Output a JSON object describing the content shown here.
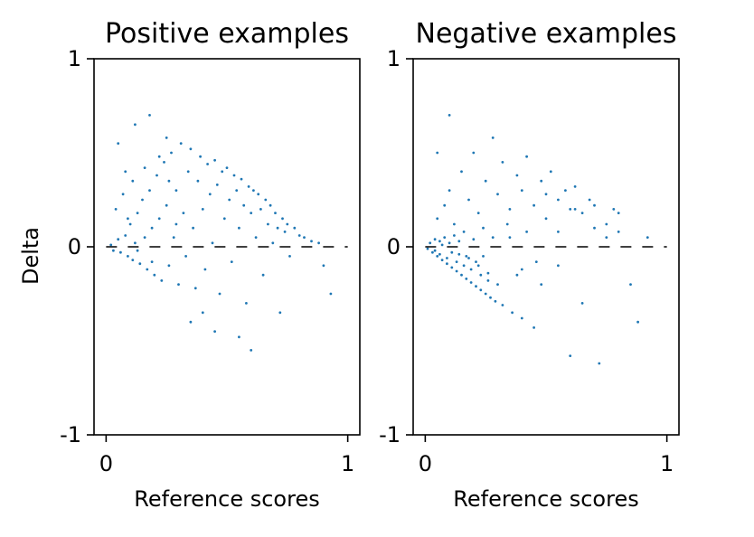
{
  "chart_data": [
    {
      "type": "scatter",
      "title": "Positive examples",
      "xlabel": "Reference scores",
      "ylabel": "Delta",
      "xlim": [
        -0.05,
        1.05
      ],
      "ylim": [
        -1,
        1
      ],
      "xticks": [
        {
          "value": 0,
          "label": "0"
        },
        {
          "value": 1,
          "label": "1"
        }
      ],
      "yticks": [
        {
          "value": -1,
          "label": "-1"
        },
        {
          "value": 0,
          "label": "0"
        },
        {
          "value": 1,
          "label": "1"
        }
      ],
      "reference_line": {
        "y": 0,
        "x_range": [
          0,
          1
        ],
        "style": "dashed",
        "color": "#000000"
      },
      "grid": false,
      "marker_color": "#1f77b4",
      "series": [
        {
          "points": [
            [
              0.02,
              0.01
            ],
            [
              0.03,
              -0.02
            ],
            [
              0.05,
              0.04
            ],
            [
              0.06,
              -0.03
            ],
            [
              0.08,
              0.06
            ],
            [
              0.09,
              -0.05
            ],
            [
              0.1,
              0.12
            ],
            [
              0.11,
              -0.07
            ],
            [
              0.12,
              0.02
            ],
            [
              0.13,
              0.18
            ],
            [
              0.14,
              -0.09
            ],
            [
              0.15,
              0.25
            ],
            [
              0.16,
              0.05
            ],
            [
              0.17,
              -0.12
            ],
            [
              0.18,
              0.3
            ],
            [
              0.19,
              0.1
            ],
            [
              0.2,
              -0.15
            ],
            [
              0.21,
              0.38
            ],
            [
              0.22,
              0.15
            ],
            [
              0.23,
              -0.18
            ],
            [
              0.24,
              0.45
            ],
            [
              0.25,
              0.22
            ],
            [
              0.26,
              -0.1
            ],
            [
              0.27,
              0.5
            ],
            [
              0.28,
              0.05
            ],
            [
              0.29,
              0.3
            ],
            [
              0.3,
              -0.2
            ],
            [
              0.31,
              0.55
            ],
            [
              0.32,
              0.18
            ],
            [
              0.33,
              -0.05
            ],
            [
              0.34,
              0.4
            ],
            [
              0.35,
              0.52
            ],
            [
              0.36,
              0.1
            ],
            [
              0.37,
              -0.22
            ],
            [
              0.38,
              0.35
            ],
            [
              0.39,
              0.48
            ],
            [
              0.4,
              0.2
            ],
            [
              0.41,
              -0.12
            ],
            [
              0.42,
              0.44
            ],
            [
              0.43,
              0.28
            ],
            [
              0.44,
              0.02
            ],
            [
              0.45,
              0.46
            ],
            [
              0.46,
              0.33
            ],
            [
              0.47,
              -0.25
            ],
            [
              0.48,
              0.4
            ],
            [
              0.49,
              0.15
            ],
            [
              0.5,
              0.42
            ],
            [
              0.51,
              0.25
            ],
            [
              0.52,
              -0.08
            ],
            [
              0.53,
              0.38
            ],
            [
              0.54,
              0.3
            ],
            [
              0.55,
              0.1
            ],
            [
              0.56,
              0.36
            ],
            [
              0.57,
              0.22
            ],
            [
              0.58,
              -0.3
            ],
            [
              0.59,
              0.32
            ],
            [
              0.6,
              0.18
            ],
            [
              0.61,
              0.3
            ],
            [
              0.62,
              0.05
            ],
            [
              0.63,
              0.28
            ],
            [
              0.64,
              0.2
            ],
            [
              0.65,
              -0.15
            ],
            [
              0.66,
              0.25
            ],
            [
              0.67,
              0.12
            ],
            [
              0.68,
              0.22
            ],
            [
              0.69,
              0.02
            ],
            [
              0.7,
              0.18
            ],
            [
              0.71,
              0.1
            ],
            [
              0.72,
              -0.35
            ],
            [
              0.73,
              0.15
            ],
            [
              0.74,
              0.08
            ],
            [
              0.75,
              0.12
            ],
            [
              0.76,
              -0.05
            ],
            [
              0.78,
              0.1
            ],
            [
              0.8,
              0.06
            ],
            [
              0.82,
              0.05
            ],
            [
              0.85,
              0.03
            ],
            [
              0.88,
              0.02
            ],
            [
              0.9,
              -0.1
            ],
            [
              0.93,
              -0.25
            ],
            [
              0.05,
              0.55
            ],
            [
              0.12,
              0.65
            ],
            [
              0.18,
              0.7
            ],
            [
              0.25,
              0.58
            ],
            [
              0.08,
              0.4
            ],
            [
              0.35,
              -0.4
            ],
            [
              0.45,
              -0.45
            ],
            [
              0.55,
              -0.48
            ],
            [
              0.6,
              -0.55
            ],
            [
              0.4,
              -0.35
            ],
            [
              0.04,
              0.2
            ],
            [
              0.07,
              0.28
            ],
            [
              0.09,
              0.15
            ],
            [
              0.11,
              0.35
            ],
            [
              0.13,
              -0.02
            ],
            [
              0.16,
              0.42
            ],
            [
              0.19,
              -0.08
            ],
            [
              0.22,
              0.48
            ],
            [
              0.26,
              0.35
            ],
            [
              0.29,
              0.12
            ]
          ]
        }
      ]
    },
    {
      "type": "scatter",
      "title": "Negative examples",
      "xlabel": "Reference scores",
      "ylabel": "",
      "xlim": [
        -0.05,
        1.05
      ],
      "ylim": [
        -1,
        1
      ],
      "xticks": [
        {
          "value": 0,
          "label": "0"
        },
        {
          "value": 1,
          "label": "1"
        }
      ],
      "yticks": [
        {
          "value": -1,
          "label": "-1"
        },
        {
          "value": 0,
          "label": "0"
        },
        {
          "value": 1,
          "label": "1"
        }
      ],
      "reference_line": {
        "y": 0,
        "x_range": [
          0,
          1
        ],
        "style": "dashed",
        "color": "#000000"
      },
      "grid": false,
      "marker_color": "#1f77b4",
      "series": [
        {
          "points": [
            [
              0.01,
              -0.01
            ],
            [
              0.02,
              0.02
            ],
            [
              0.03,
              -0.03
            ],
            [
              0.04,
              0.04
            ],
            [
              0.05,
              -0.05
            ],
            [
              0.06,
              0.03
            ],
            [
              0.07,
              -0.07
            ],
            [
              0.08,
              0.05
            ],
            [
              0.09,
              -0.09
            ],
            [
              0.1,
              0.02
            ],
            [
              0.11,
              -0.11
            ],
            [
              0.12,
              0.06
            ],
            [
              0.13,
              -0.13
            ],
            [
              0.14,
              -0.04
            ],
            [
              0.15,
              -0.15
            ],
            [
              0.16,
              0.08
            ],
            [
              0.17,
              -0.17
            ],
            [
              0.18,
              -0.06
            ],
            [
              0.19,
              -0.19
            ],
            [
              0.2,
              0.04
            ],
            [
              0.21,
              -0.21
            ],
            [
              0.22,
              -0.1
            ],
            [
              0.23,
              -0.23
            ],
            [
              0.24,
              0.1
            ],
            [
              0.25,
              -0.25
            ],
            [
              0.26,
              -0.14
            ],
            [
              0.27,
              -0.27
            ],
            [
              0.28,
              0.05
            ],
            [
              0.29,
              -0.29
            ],
            [
              0.3,
              -0.2
            ],
            [
              0.32,
              -0.31
            ],
            [
              0.34,
              0.12
            ],
            [
              0.36,
              -0.35
            ],
            [
              0.38,
              -0.15
            ],
            [
              0.4,
              -0.38
            ],
            [
              0.42,
              0.08
            ],
            [
              0.45,
              -0.43
            ],
            [
              0.48,
              -0.2
            ],
            [
              0.5,
              0.15
            ],
            [
              0.55,
              -0.1
            ],
            [
              0.6,
              -0.58
            ],
            [
              0.62,
              0.2
            ],
            [
              0.65,
              -0.3
            ],
            [
              0.7,
              0.1
            ],
            [
              0.72,
              -0.62
            ],
            [
              0.75,
              0.05
            ],
            [
              0.8,
              0.18
            ],
            [
              0.85,
              -0.2
            ],
            [
              0.88,
              -0.4
            ],
            [
              0.92,
              0.05
            ],
            [
              0.05,
              0.15
            ],
            [
              0.08,
              0.22
            ],
            [
              0.1,
              0.3
            ],
            [
              0.12,
              0.12
            ],
            [
              0.15,
              0.4
            ],
            [
              0.18,
              0.25
            ],
            [
              0.2,
              0.5
            ],
            [
              0.22,
              0.18
            ],
            [
              0.25,
              0.35
            ],
            [
              0.28,
              0.58
            ],
            [
              0.3,
              0.28
            ],
            [
              0.32,
              0.45
            ],
            [
              0.35,
              0.2
            ],
            [
              0.38,
              0.38
            ],
            [
              0.4,
              0.3
            ],
            [
              0.42,
              0.48
            ],
            [
              0.45,
              0.22
            ],
            [
              0.48,
              0.35
            ],
            [
              0.5,
              0.28
            ],
            [
              0.52,
              0.4
            ],
            [
              0.55,
              0.25
            ],
            [
              0.58,
              0.3
            ],
            [
              0.6,
              0.2
            ],
            [
              0.62,
              0.32
            ],
            [
              0.65,
              0.18
            ],
            [
              0.68,
              0.25
            ],
            [
              0.7,
              0.22
            ],
            [
              0.75,
              0.12
            ],
            [
              0.78,
              0.2
            ],
            [
              0.8,
              0.08
            ],
            [
              0.04,
              -0.02
            ],
            [
              0.06,
              -0.04
            ],
            [
              0.07,
              0.01
            ],
            [
              0.09,
              -0.06
            ],
            [
              0.11,
              -0.03
            ],
            [
              0.13,
              -0.08
            ],
            [
              0.14,
              0.03
            ],
            [
              0.16,
              -0.1
            ],
            [
              0.17,
              -0.05
            ],
            [
              0.19,
              -0.12
            ],
            [
              0.21,
              -0.08
            ],
            [
              0.23,
              -0.15
            ],
            [
              0.24,
              -0.05
            ],
            [
              0.26,
              -0.18
            ],
            [
              0.1,
              0.7
            ],
            [
              0.05,
              0.5
            ],
            [
              0.4,
              -0.12
            ],
            [
              0.46,
              -0.08
            ],
            [
              0.35,
              0.05
            ],
            [
              0.55,
              0.08
            ]
          ]
        }
      ]
    }
  ]
}
